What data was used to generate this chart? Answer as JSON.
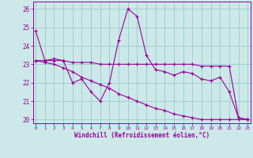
{
  "x": [
    0,
    1,
    2,
    3,
    4,
    5,
    6,
    7,
    8,
    9,
    10,
    11,
    12,
    13,
    14,
    15,
    16,
    17,
    18,
    19,
    20,
    21,
    22,
    23
  ],
  "line1": [
    24.8,
    23.2,
    23.3,
    23.2,
    22.0,
    22.2,
    21.5,
    21.0,
    22.0,
    24.3,
    26.0,
    25.6,
    23.5,
    22.7,
    22.6,
    22.4,
    22.6,
    22.5,
    22.2,
    22.1,
    22.3,
    21.5,
    20.1,
    20.0
  ],
  "line2": [
    23.2,
    23.2,
    23.2,
    23.2,
    23.1,
    23.1,
    23.1,
    23.0,
    23.0,
    23.0,
    23.0,
    23.0,
    23.0,
    23.0,
    23.0,
    23.0,
    23.0,
    23.0,
    22.9,
    22.9,
    22.9,
    22.9,
    20.1,
    20.0
  ],
  "line3": [
    23.2,
    23.1,
    23.0,
    22.8,
    22.6,
    22.3,
    22.1,
    21.9,
    21.7,
    21.4,
    21.2,
    21.0,
    20.8,
    20.6,
    20.5,
    20.3,
    20.2,
    20.1,
    20.0,
    20.0,
    20.0,
    20.0,
    20.0,
    20.0
  ],
  "bg_color": "#cce8e8",
  "line_color": "#990099",
  "grid_color": "#99cccc",
  "xlabel": "Windchill (Refroidissement éolien,°C)",
  "ylim": [
    19.8,
    26.4
  ],
  "xlim": [
    -0.3,
    23.3
  ],
  "yticks": [
    20,
    21,
    22,
    23,
    24,
    25,
    26
  ],
  "xticks": [
    0,
    1,
    2,
    3,
    4,
    5,
    6,
    7,
    8,
    9,
    10,
    11,
    12,
    13,
    14,
    15,
    16,
    17,
    18,
    19,
    20,
    21,
    22,
    23
  ]
}
